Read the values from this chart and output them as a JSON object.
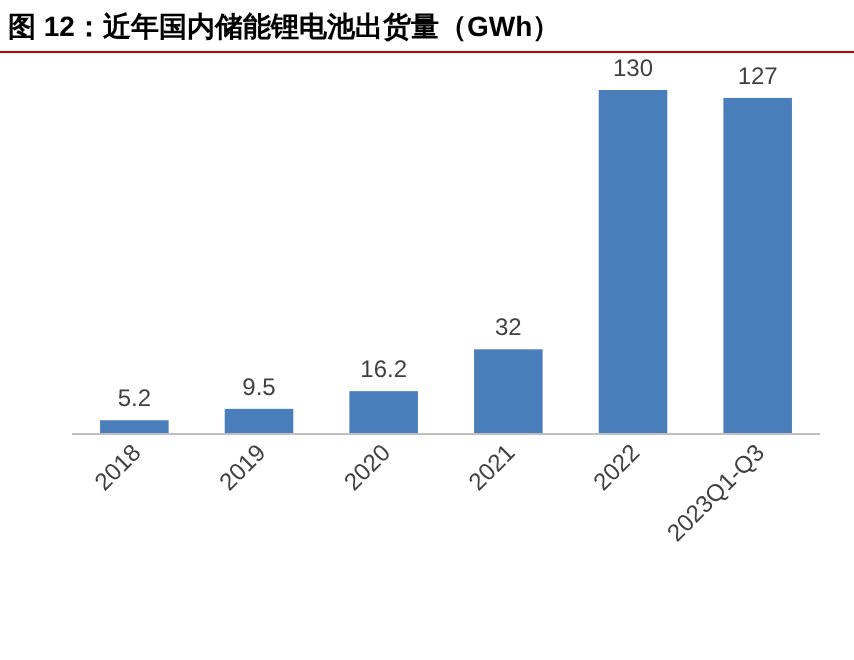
{
  "chart_data": {
    "type": "bar",
    "title": "图 12：近年国内储能锂电池出货量（GWh）",
    "categories": [
      "2018",
      "2019",
      "2020",
      "2021",
      "2022",
      "2023Q1-Q3"
    ],
    "values": [
      5.2,
      9.5,
      16.2,
      32,
      130,
      127
    ],
    "color": "#4a7ebb",
    "data_labels": true
  }
}
